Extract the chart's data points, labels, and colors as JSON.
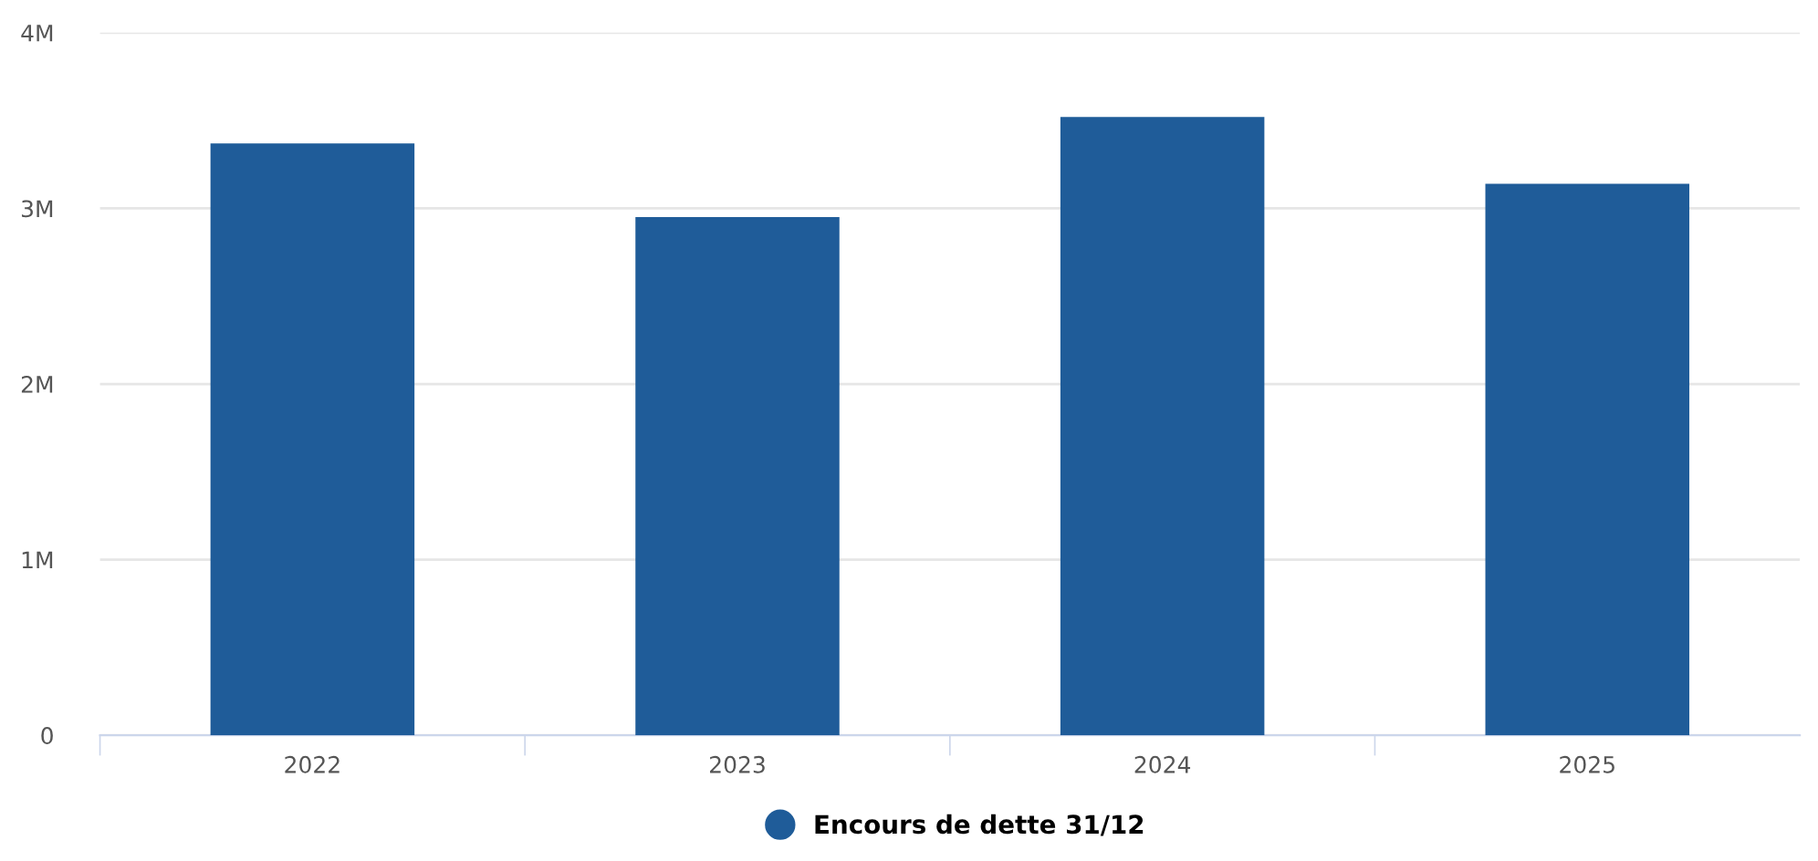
{
  "chart_data": {
    "type": "bar",
    "categories": [
      "2022",
      "2023",
      "2024",
      "2025"
    ],
    "series": [
      {
        "name": "Encours de dette 31/12",
        "color": "#1f5c99",
        "values": [
          3370000,
          2950000,
          3520000,
          3140000
        ]
      }
    ],
    "ylim": [
      0,
      4000000
    ],
    "yticks": [
      {
        "value": 0,
        "label": "0"
      },
      {
        "value": 1000000,
        "label": "1M"
      },
      {
        "value": 2000000,
        "label": "2M"
      },
      {
        "value": 3000000,
        "label": "3M"
      },
      {
        "value": 4000000,
        "label": "4M"
      }
    ],
    "grid": "y",
    "legend": "bottom"
  }
}
